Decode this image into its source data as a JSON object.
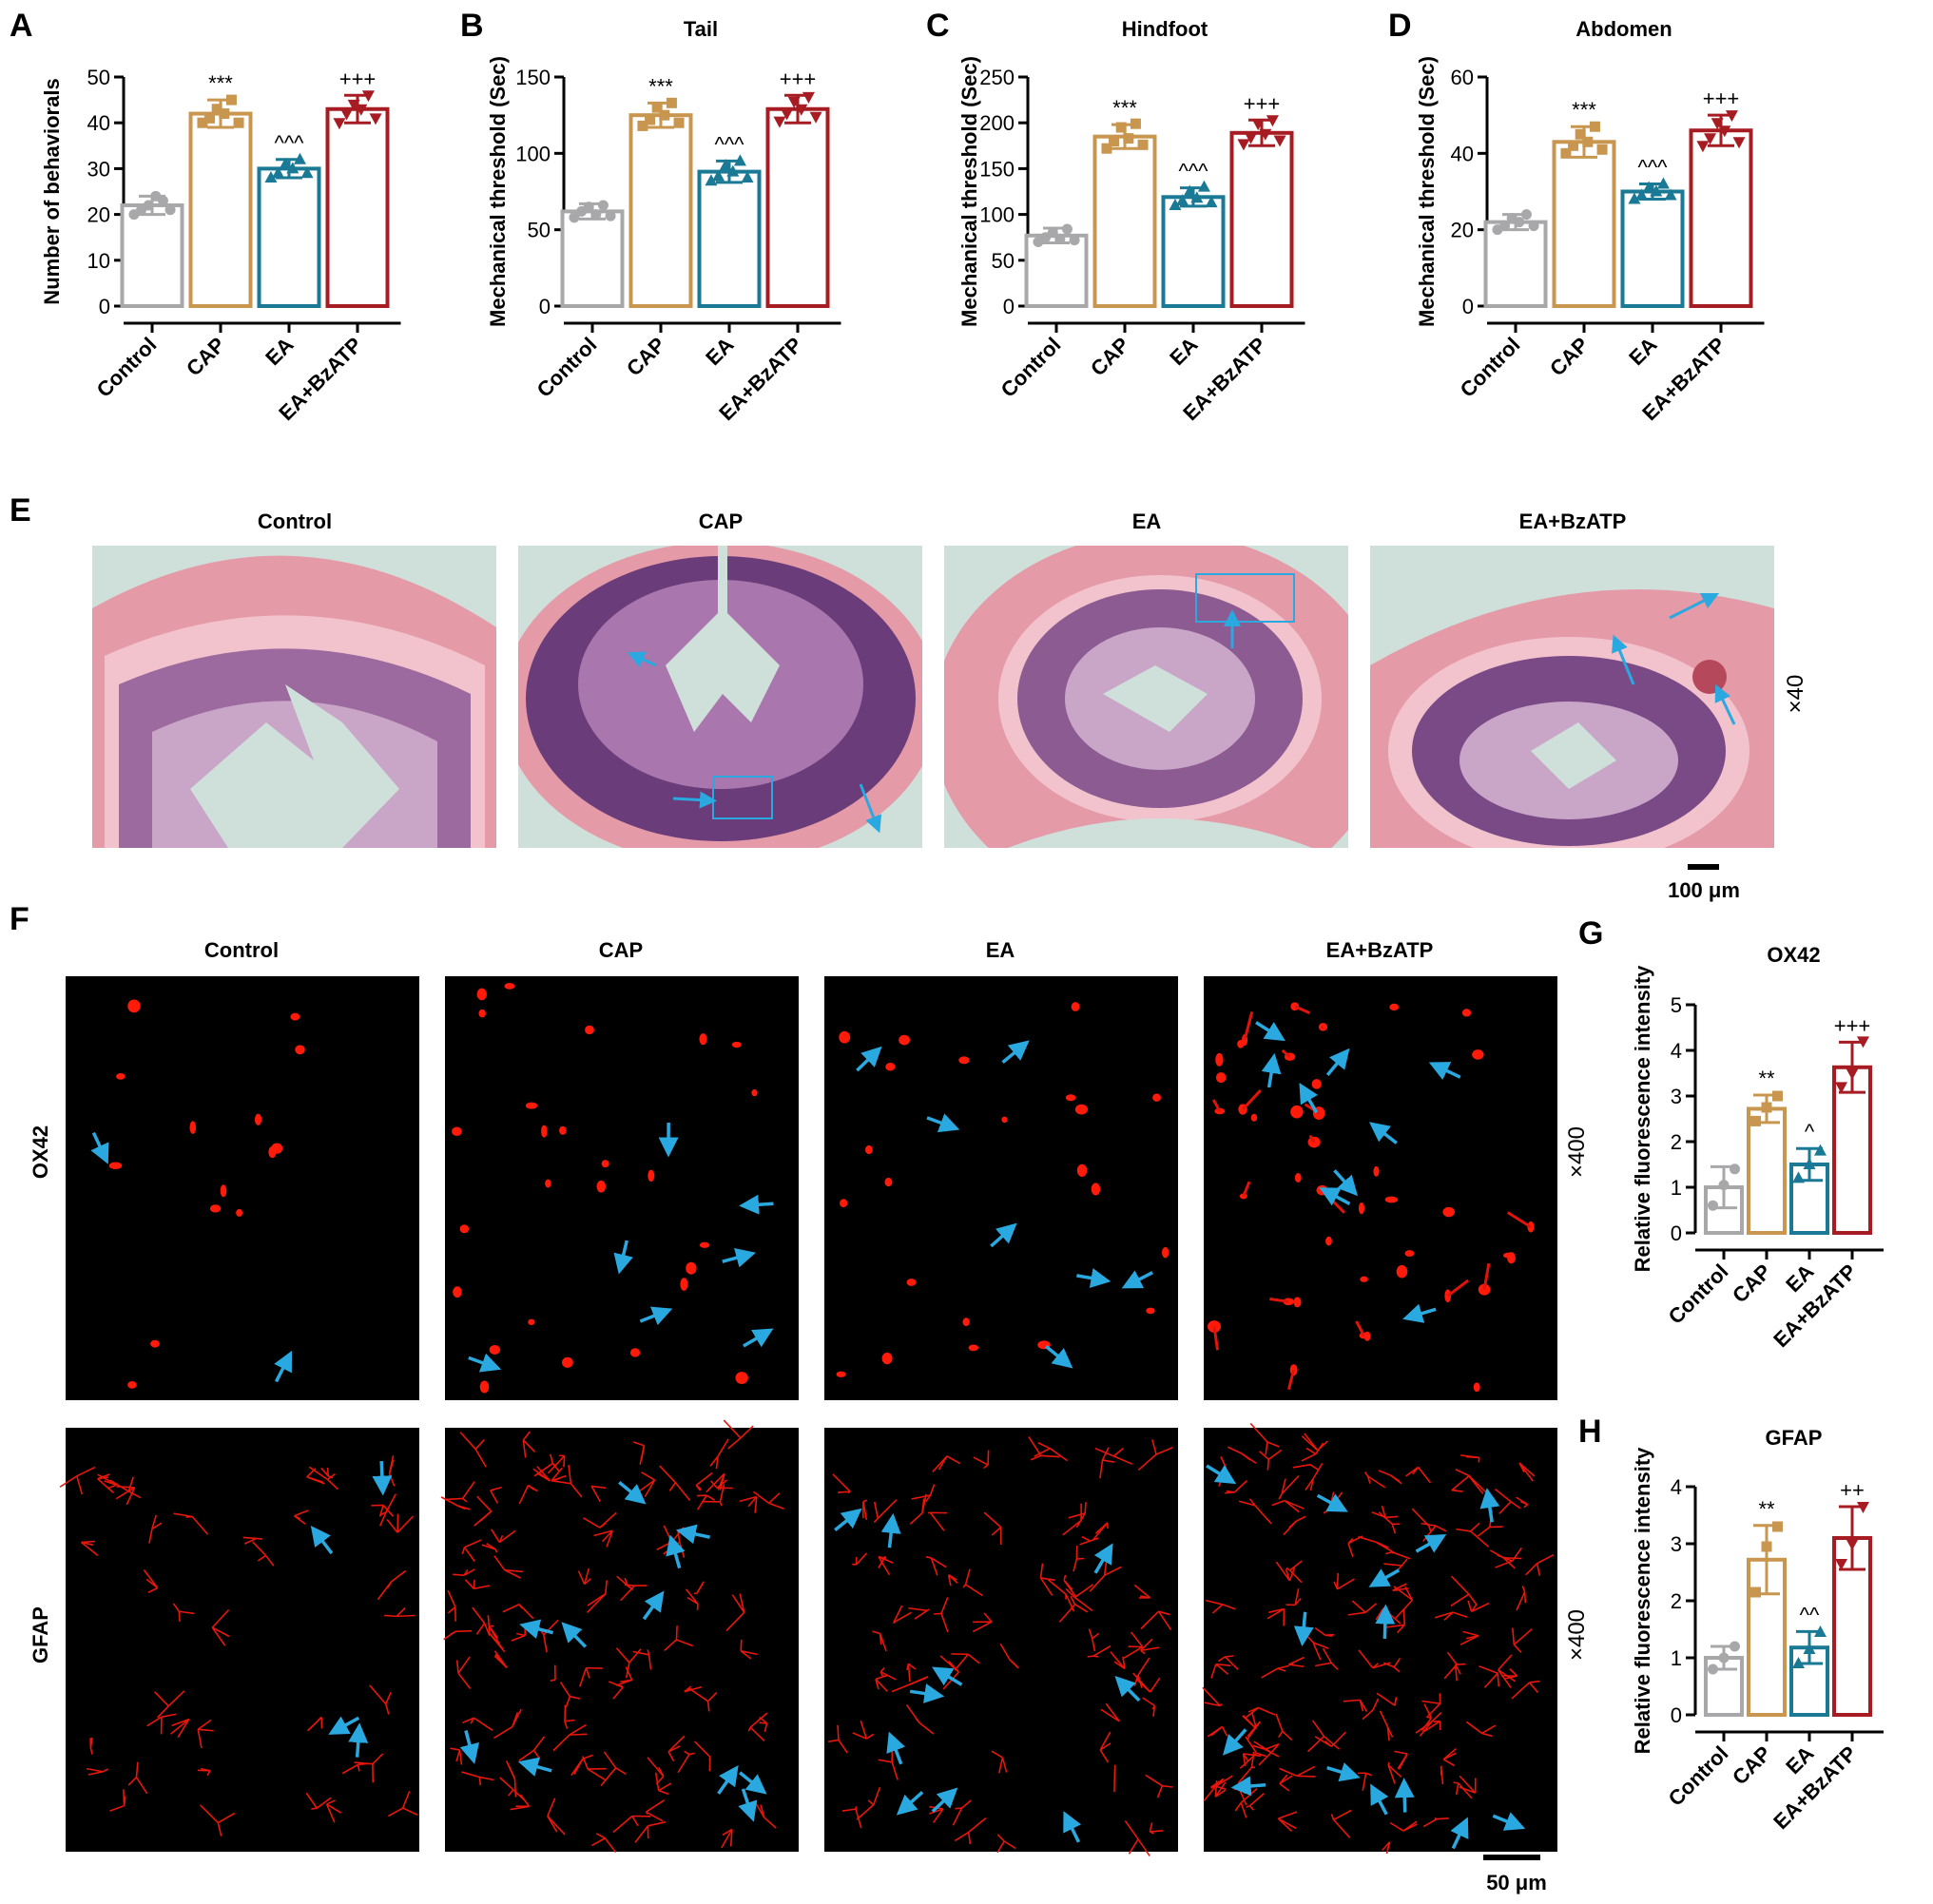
{
  "colors": {
    "groups": [
      "#a8a8ab",
      "#c8964e",
      "#1a7a96",
      "#a71c22"
    ],
    "arrow": "#29a9e0",
    "he_pink": "#e59aa8",
    "he_purple": "#6a3c7a",
    "he_background": "#cfe0da",
    "fluor_red": "#ff1a0a"
  },
  "panel_letters": [
    "A",
    "B",
    "C",
    "D",
    "E",
    "F",
    "G",
    "H"
  ],
  "groups": [
    "Control",
    "CAP",
    "EA",
    "EA+BzATP"
  ],
  "chart_data": [
    {
      "type": "bar",
      "panel": "A",
      "title": "",
      "ylabel": "Number of behaviorals",
      "ylim": [
        0,
        50
      ],
      "yticks": [
        "0",
        "10",
        "20",
        "30",
        "40",
        "50"
      ],
      "categories": [
        "Control",
        "CAP",
        "EA",
        "EA+BzATP"
      ],
      "values": [
        22,
        42,
        30,
        43
      ],
      "errors": [
        2,
        3,
        2,
        3
      ],
      "points": [
        [
          20,
          21,
          22,
          24,
          23,
          21
        ],
        [
          40,
          41,
          43,
          42,
          45,
          40
        ],
        [
          28,
          29,
          31,
          30,
          32,
          29
        ],
        [
          40,
          42,
          44,
          43,
          46,
          41
        ]
      ],
      "annotations": [
        "",
        "***",
        "^^^",
        "+++"
      ]
    },
    {
      "type": "bar",
      "panel": "B",
      "title": "Tail",
      "ylabel": "Mechanical threshold (Sec)",
      "ylim": [
        0,
        150
      ],
      "yticks": [
        "0",
        "50",
        "100",
        "150"
      ],
      "categories": [
        "Control",
        "CAP",
        "EA",
        "EA+BzATP"
      ],
      "values": [
        62,
        125,
        88,
        129
      ],
      "errors": [
        5,
        8,
        7,
        9
      ],
      "points": [
        [
          58,
          62,
          65,
          60,
          66,
          59
        ],
        [
          118,
          122,
          130,
          125,
          133,
          120
        ],
        [
          82,
          85,
          92,
          88,
          95,
          84
        ],
        [
          121,
          126,
          134,
          129,
          137,
          124
        ]
      ],
      "annotations": [
        "",
        "***",
        "^^^",
        "+++"
      ]
    },
    {
      "type": "bar",
      "panel": "C",
      "title": "Hindfoot",
      "ylabel": "Mechanical threshold (Sec)",
      "ylim": [
        0,
        250
      ],
      "yticks": [
        "0",
        "50",
        "100",
        "150",
        "200",
        "250"
      ],
      "categories": [
        "Control",
        "CAP",
        "EA",
        "EA+BzATP"
      ],
      "values": [
        77,
        185,
        119,
        189
      ],
      "errors": [
        8,
        13,
        10,
        14
      ],
      "points": [
        [
          70,
          75,
          80,
          73,
          84,
          72
        ],
        [
          172,
          180,
          195,
          183,
          199,
          176
        ],
        [
          110,
          115,
          125,
          118,
          130,
          113
        ],
        [
          177,
          184,
          199,
          188,
          203,
          181
        ]
      ],
      "annotations": [
        "",
        "***",
        "^^^",
        "+++"
      ]
    },
    {
      "type": "bar",
      "panel": "D",
      "title": "Abdomen",
      "ylabel": "Mechanical threshold (Sec)",
      "ylim": [
        0,
        60
      ],
      "yticks": [
        "0",
        "20",
        "40",
        "60"
      ],
      "categories": [
        "Control",
        "CAP",
        "EA",
        "EA+BzATP"
      ],
      "values": [
        22,
        43,
        30,
        46
      ],
      "errors": [
        2,
        4,
        2,
        4
      ],
      "points": [
        [
          20,
          21,
          23,
          22,
          24,
          21
        ],
        [
          40,
          42,
          45,
          43,
          47,
          41
        ],
        [
          28,
          29,
          31,
          30,
          32,
          29
        ],
        [
          42,
          44,
          48,
          46,
          50,
          43
        ]
      ],
      "annotations": [
        "",
        "***",
        "^^^",
        "+++"
      ]
    },
    {
      "type": "bar",
      "panel": "G",
      "title": "OX42",
      "ylabel": "Relative fluorescence intensity",
      "ylim": [
        0,
        5
      ],
      "yticks": [
        "0",
        "1",
        "2",
        "3",
        "4",
        "5"
      ],
      "categories": [
        "Control",
        "CAP",
        "EA",
        "EA+BzATP"
      ],
      "values": [
        1.0,
        2.72,
        1.5,
        3.63
      ],
      "errors": [
        0.45,
        0.3,
        0.35,
        0.55
      ],
      "points": [
        [
          0.6,
          1.05,
          1.4
        ],
        [
          2.45,
          2.75,
          3.0
        ],
        [
          1.2,
          1.5,
          1.8
        ],
        [
          3.2,
          3.5,
          4.2
        ]
      ],
      "annotations": [
        "",
        "**",
        "^",
        "+++"
      ]
    },
    {
      "type": "bar",
      "panel": "H",
      "title": "GFAP",
      "ylabel": "Relative fluorescence intensity",
      "ylim": [
        0,
        4
      ],
      "yticks": [
        "0",
        "1",
        "2",
        "3",
        "4"
      ],
      "categories": [
        "Control",
        "CAP",
        "EA",
        "EA+BzATP"
      ],
      "values": [
        1.0,
        2.72,
        1.18,
        3.1
      ],
      "errors": [
        0.2,
        0.6,
        0.28,
        0.55
      ],
      "points": [
        [
          0.8,
          1.0,
          1.2
        ],
        [
          2.15,
          2.95,
          3.3
        ],
        [
          0.9,
          1.15,
          1.45
        ],
        [
          2.65,
          3.0,
          3.65
        ]
      ],
      "annotations": [
        "",
        "**",
        "^^",
        "++"
      ]
    }
  ],
  "histology": {
    "panel": "E",
    "columns": [
      "Control",
      "CAP",
      "EA",
      "EA+BzATP"
    ],
    "magnification": "×40",
    "scale_bar": "100 μm"
  },
  "immunofluorescence": {
    "panel": "F",
    "columns": [
      "Control",
      "CAP",
      "EA",
      "EA+BzATP"
    ],
    "rows": [
      "OX42",
      "GFAP"
    ],
    "magnification": "×400",
    "scale_bar": "50 μm"
  }
}
